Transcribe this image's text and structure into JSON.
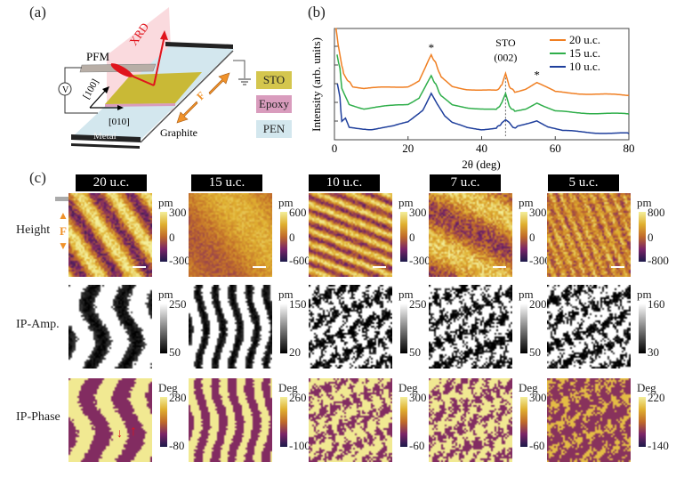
{
  "panel_a": {
    "label": "(a)",
    "xrd_label": "XRD",
    "pfm_label": "PFM",
    "voltage_label": "V",
    "axis_100": "[100]",
    "axis_010": "[010]",
    "metal_label": "Metal",
    "graphite_label": "Graphite",
    "force_label": "F",
    "legend": [
      {
        "label": "STO",
        "color": "#d4c64e"
      },
      {
        "label": "Epoxy",
        "color": "#d99cbd"
      },
      {
        "label": "PEN",
        "color": "#d3e7ee"
      }
    ]
  },
  "panel_b": {
    "label": "(b)"
  },
  "chart_data": {
    "type": "line",
    "xlabel": "2θ (deg)",
    "ylabel": "Intensity (arb. units)",
    "xlim": [
      0,
      80
    ],
    "ylim": [
      0,
      10
    ],
    "xticks": [
      0,
      20,
      40,
      60,
      80
    ],
    "y_tick_labels": "none",
    "legend_position": "top-right",
    "series": [
      {
        "name": "20 u.c.",
        "color": "#f07f22",
        "x": [
          0.4,
          1,
          2,
          2.5,
          3.5,
          5,
          8,
          14,
          20,
          23,
          25,
          26.3,
          27.5,
          29,
          32,
          36,
          40,
          44,
          45.5,
          46.5,
          47.5,
          49,
          52,
          55,
          57,
          60,
          65,
          70,
          80
        ],
        "y": [
          10,
          8.6,
          6.7,
          6.0,
          5.4,
          4.8,
          4.6,
          4.7,
          4.8,
          5.3,
          6.7,
          7.6,
          6.9,
          5.6,
          4.8,
          4.55,
          4.45,
          4.4,
          4.9,
          5.95,
          4.8,
          4.3,
          4.6,
          5.15,
          4.8,
          4.3,
          4.2,
          4.1,
          4.0
        ]
      },
      {
        "name": "15 u.c.",
        "color": "#2fae4a",
        "x": [
          0.7,
          1.5,
          2,
          3,
          4,
          5,
          8,
          14,
          20,
          23,
          25,
          26.3,
          27.5,
          29,
          32,
          36,
          40,
          44,
          45.5,
          46.5,
          47.5,
          49,
          52,
          55,
          57,
          60,
          65,
          70,
          80
        ],
        "y": [
          7.6,
          6.4,
          4.6,
          3.9,
          3.2,
          3.1,
          2.8,
          3.0,
          3.2,
          3.8,
          5.0,
          5.7,
          5.0,
          3.9,
          3.1,
          2.9,
          2.8,
          2.7,
          3.3,
          4.1,
          3.0,
          2.55,
          2.8,
          3.35,
          3.0,
          2.55,
          2.45,
          2.4,
          2.3
        ]
      },
      {
        "name": "10 u.c.",
        "color": "#1f3f9c",
        "x": [
          0.8,
          1.5,
          2,
          3,
          4,
          10,
          16,
          20,
          24,
          26.3,
          28,
          30,
          32,
          36,
          40,
          44,
          45.5,
          46.5,
          47.5,
          48.5,
          50,
          52,
          55,
          58,
          62,
          70,
          80
        ],
        "y": [
          5.0,
          3.75,
          1.6,
          1.9,
          1.1,
          0.95,
          1.2,
          1.6,
          2.7,
          4.15,
          3.2,
          2.1,
          1.5,
          1.1,
          0.95,
          1.05,
          1.5,
          1.75,
          1.5,
          1.05,
          1.2,
          1.4,
          1.75,
          1.2,
          0.8,
          0.65,
          0.55
        ]
      }
    ],
    "annotations": [
      {
        "text": "*",
        "x": 26.3
      },
      {
        "text": "STO",
        "x": 46.5
      },
      {
        "text": "(002)",
        "x": 46.5
      },
      {
        "text": "*",
        "x": 55
      }
    ],
    "reference_line_x": 46.5
  },
  "panel_c": {
    "label": "(c)",
    "force_label": "F",
    "row_labels": [
      "Height",
      "IP-Amp.",
      "IP-Phase"
    ],
    "columns": [
      {
        "title": "20 u.c.",
        "height": {
          "unit": "pm",
          "max": "300",
          "mid": "0",
          "min": "-300"
        },
        "amp": {
          "unit": "pm",
          "max": "250",
          "min": "50"
        },
        "phase": {
          "unit": "Deg",
          "max": "280",
          "min": "-80"
        }
      },
      {
        "title": "15 u.c.",
        "height": {
          "unit": "pm",
          "max": "600",
          "mid": "0",
          "min": "-600"
        },
        "amp": {
          "unit": "pm",
          "max": "150",
          "min": "20"
        },
        "phase": {
          "unit": "Deg",
          "max": "260",
          "min": "-100"
        }
      },
      {
        "title": "10 u.c.",
        "height": {
          "unit": "pm",
          "max": "300",
          "mid": "0",
          "min": "-300"
        },
        "amp": {
          "unit": "pm",
          "max": "250",
          "min": "50"
        },
        "phase": {
          "unit": "Deg",
          "max": "300",
          "min": "-60"
        }
      },
      {
        "title": "7 u.c.",
        "height": {
          "unit": "pm",
          "max": "300",
          "mid": "0",
          "min": "-300"
        },
        "amp": {
          "unit": "pm",
          "max": "200",
          "min": "50"
        },
        "phase": {
          "unit": "Deg",
          "max": "300",
          "min": "-60"
        }
      },
      {
        "title": "5 u.c.",
        "height": {
          "unit": "pm",
          "max": "800",
          "mid": "0",
          "min": "-800"
        },
        "amp": {
          "unit": "pm",
          "max": "160",
          "min": "30"
        },
        "phase": {
          "unit": "Deg",
          "max": "220",
          "min": "-140"
        }
      }
    ],
    "colormaps": {
      "height": [
        "#f3ee9a",
        "#e0b030",
        "#c06a2a",
        "#7a2468",
        "#1c1a4a"
      ],
      "amp": [
        "#ffffff",
        "#000000"
      ],
      "phase": [
        "#f3ee9a",
        "#e0b030",
        "#c06a2a",
        "#7a2468",
        "#1c1a4a"
      ]
    }
  }
}
